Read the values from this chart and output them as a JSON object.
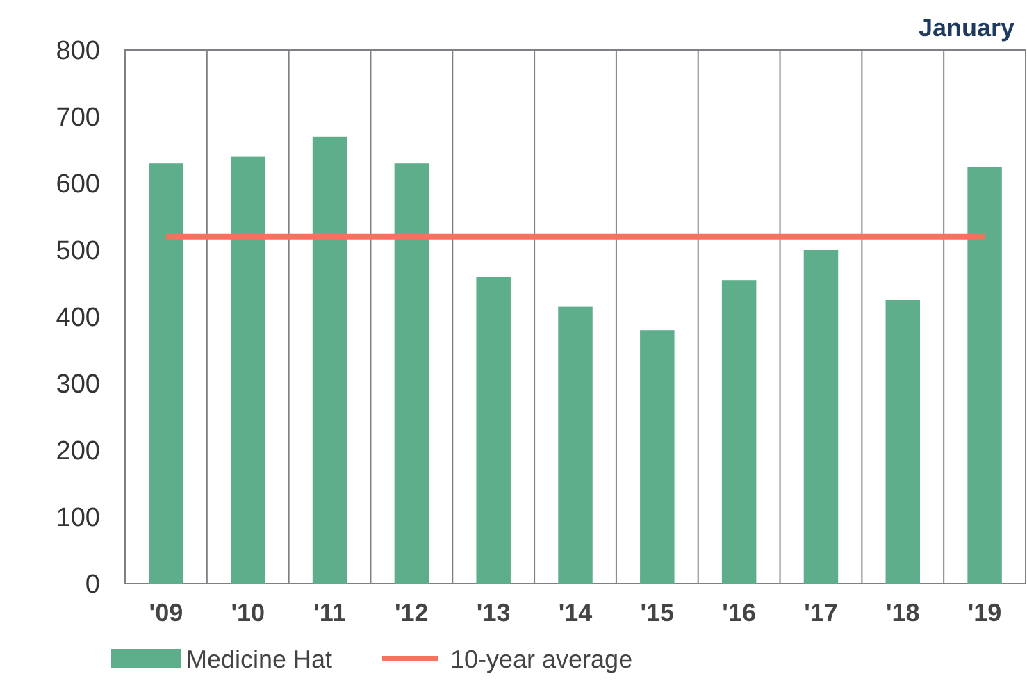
{
  "chart_data": {
    "type": "bar",
    "title": "January",
    "categories": [
      "'09",
      "'10",
      "'11",
      "'12",
      "'13",
      "'14",
      "'15",
      "'16",
      "'17",
      "'18",
      "'19"
    ],
    "series": [
      {
        "name": "Medicine Hat",
        "color": "#5fae8b",
        "values": [
          630,
          640,
          670,
          630,
          460,
          415,
          380,
          455,
          500,
          425,
          625
        ]
      },
      {
        "name": "10-year average",
        "type": "line",
        "color": "#f4735f",
        "values": [
          520,
          520,
          520,
          520,
          520,
          520,
          520,
          520,
          520,
          520,
          520
        ]
      }
    ],
    "ylim": [
      0,
      800
    ],
    "yticks": [
      0,
      100,
      200,
      300,
      400,
      500,
      600,
      700,
      800
    ],
    "grid": "x",
    "legend": "bottom"
  }
}
